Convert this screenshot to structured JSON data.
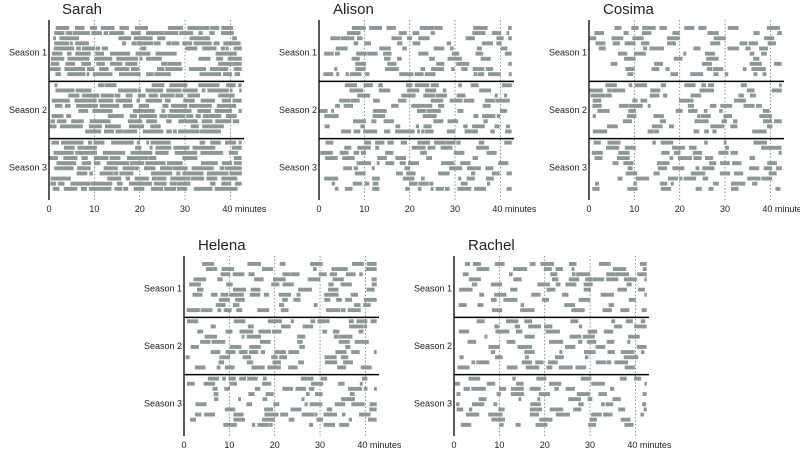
{
  "chart_data": [
    {
      "type": "timeline",
      "title": "Sarah",
      "seasons": [
        "Season 1",
        "Season 2",
        "Season 3"
      ],
      "x_ticks": [
        0,
        10,
        20,
        30,
        40
      ],
      "x_tick_labels": [
        "0",
        "10",
        "20",
        "30",
        "40 minutes"
      ],
      "xlim": [
        0,
        43
      ],
      "episodes_per_season": 10,
      "bar_color": "#8b9895",
      "density": 0.85
    },
    {
      "type": "timeline",
      "title": "Alison",
      "seasons": [
        "Season 1",
        "Season 2",
        "Season 3"
      ],
      "x_ticks": [
        0,
        10,
        20,
        30,
        40
      ],
      "x_tick_labels": [
        "0",
        "10",
        "20",
        "30",
        "40 minutes"
      ],
      "xlim": [
        0,
        43
      ],
      "episodes_per_season": 10,
      "bar_color": "#8b9895",
      "density": 0.35
    },
    {
      "type": "timeline",
      "title": "Cosima",
      "seasons": [
        "Season 1",
        "Season 2",
        "Season 3"
      ],
      "x_ticks": [
        0,
        10,
        20,
        30,
        40
      ],
      "x_tick_labels": [
        "0",
        "10",
        "20",
        "30",
        "40 minutes"
      ],
      "xlim": [
        0,
        43
      ],
      "episodes_per_season": 10,
      "bar_color": "#8b9895",
      "density": 0.3
    },
    {
      "type": "timeline",
      "title": "Helena",
      "seasons": [
        "Season 1",
        "Season 2",
        "Season 3"
      ],
      "x_ticks": [
        0,
        10,
        20,
        30,
        40
      ],
      "x_tick_labels": [
        "0",
        "10",
        "20",
        "30",
        "40 minutes"
      ],
      "xlim": [
        0,
        43
      ],
      "episodes_per_season": 10,
      "bar_color": "#8b9895",
      "density": 0.3
    },
    {
      "type": "timeline",
      "title": "Rachel",
      "seasons": [
        "Season 1",
        "Season 2",
        "Season 3"
      ],
      "x_ticks": [
        0,
        10,
        20,
        30,
        40
      ],
      "x_tick_labels": [
        "0",
        "10",
        "20",
        "30",
        "40 minutes"
      ],
      "xlim": [
        0,
        43
      ],
      "episodes_per_season": 10,
      "bar_color": "#8b9895",
      "density": 0.12
    }
  ]
}
